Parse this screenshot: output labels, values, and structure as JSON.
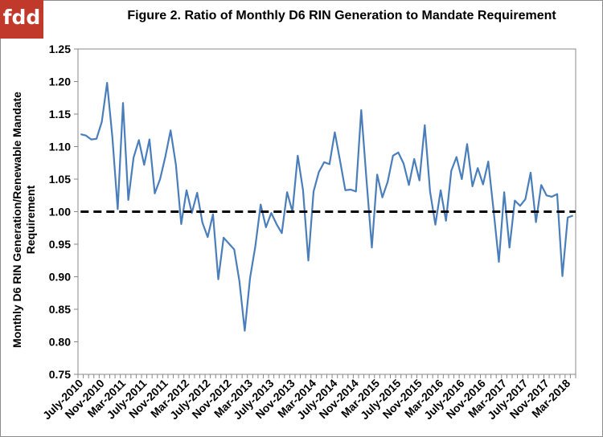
{
  "logo": {
    "text": "fdd"
  },
  "chart_data": {
    "type": "line",
    "title": "Figure  2. Ratio of Monthly  D6 RIN Generation  to  Mandate Requirement",
    "xlabel": "",
    "ylabel": "Monthly D6 RIN Generation/Renewable Mandate Requirement",
    "ylim": [
      0.75,
      1.25
    ],
    "yticks": [
      "0.75",
      "0.80",
      "0.85",
      "0.90",
      "0.95",
      "1.00",
      "1.05",
      "1.10",
      "1.15",
      "1.20",
      "1.25"
    ],
    "xtick_labels": [
      "July-2010",
      "Nov-2010",
      "Mar-2011",
      "July-2011",
      "Nov-2011",
      "Mar-2012",
      "July-2012",
      "Nov-2012",
      "Mar-2013",
      "July-2013",
      "Nov-2013",
      "Mar-2014",
      "July-2014",
      "Nov-2014",
      "Mar-2015",
      "July-2015",
      "Nov-2015",
      "Mar-2016",
      "July-2016",
      "Nov-2016",
      "Mar-2017",
      "July-2017",
      "Nov-2017",
      "Mar-2018"
    ],
    "grid": false,
    "legend": "none",
    "line_color": "#4a7ebb",
    "reference_line": {
      "y": 1.0,
      "style": "dashed",
      "color": "#000000"
    },
    "series": [
      {
        "values": [
          1.119,
          1.117,
          1.111,
          1.112,
          1.138,
          1.198,
          1.114,
          1.004,
          1.167,
          1.018,
          1.083,
          1.11,
          1.072,
          1.111,
          1.028,
          1.05,
          1.085,
          1.125,
          1.072,
          0.981,
          1.033,
          0.998,
          1.029,
          0.983,
          0.961,
          0.996,
          0.896,
          0.96,
          0.951,
          0.942,
          0.893,
          0.817,
          0.898,
          0.947,
          1.011,
          0.976,
          0.998,
          0.981,
          0.967,
          1.03,
          1.0,
          1.086,
          1.033,
          0.925,
          1.031,
          1.061,
          1.076,
          1.073,
          1.122,
          1.078,
          1.033,
          1.034,
          1.031,
          1.156,
          1.048,
          0.945,
          1.057,
          1.022,
          1.046,
          1.086,
          1.091,
          1.074,
          1.041,
          1.081,
          1.048,
          1.133,
          1.031,
          0.98,
          1.033,
          0.986,
          1.063,
          1.084,
          1.05,
          1.104,
          1.039,
          1.067,
          1.042,
          1.077,
          1.002,
          0.923,
          1.03,
          0.945,
          1.017,
          1.009,
          1.019,
          1.06,
          0.984,
          1.041,
          1.025,
          1.023,
          1.027,
          0.901,
          0.991,
          0.994
        ]
      }
    ]
  }
}
